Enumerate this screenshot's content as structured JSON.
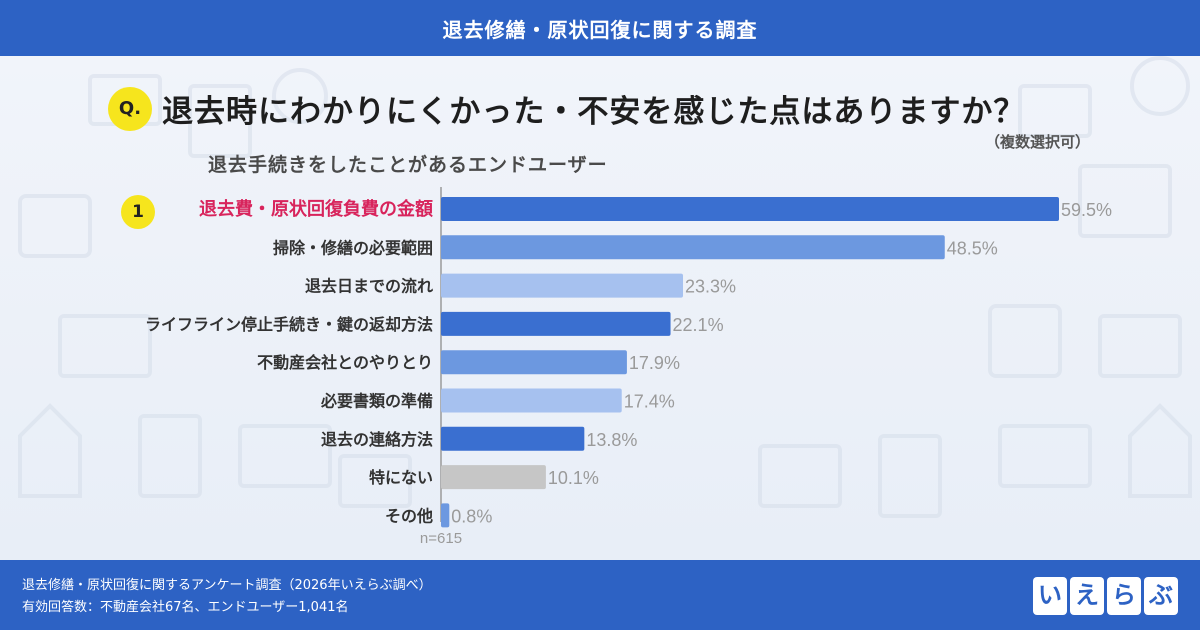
{
  "header": {
    "title": "退去修繕・原状回復に関する調査"
  },
  "question": {
    "badge": "Q.",
    "text": "退去時にわかりにくかった・不安を感じた点はありますか？",
    "note": "（複数選択可）"
  },
  "subtitle": "退去手続きをしたことがあるエンドユーザー",
  "rank_badge": "1",
  "chart_data": {
    "type": "bar",
    "orientation": "horizontal",
    "categories": [
      "退去費・原状回復負費の金額",
      "掃除・修繕の必要範囲",
      "退去日までの流れ",
      "ライフライン停止手続き・鍵の返却方法",
      "不動産会社とのやりとり",
      "必要書類の準備",
      "退去の連絡方法",
      "特にない",
      "その他"
    ],
    "values": [
      59.5,
      48.5,
      23.3,
      22.1,
      17.9,
      17.4,
      13.8,
      10.1,
      0.8
    ],
    "value_labels": [
      "59.5%",
      "48.5%",
      "23.3%",
      "22.1%",
      "17.9%",
      "17.4%",
      "13.8%",
      "10.1%",
      "0.8%"
    ],
    "bar_colors": [
      "#3a6fd0",
      "#6c98e0",
      "#a6c1ef",
      "#3a6fd0",
      "#6c98e0",
      "#a6c1ef",
      "#3a6fd0",
      "#c6c6c6",
      "#6c98e0"
    ],
    "highlight_index": 0,
    "highlight_color": "#d8245c",
    "label_color": "#333333",
    "value_color": "#9a9a9a",
    "xlim": [
      0,
      65
    ],
    "sample_size": "n=615"
  },
  "footer": {
    "line1": "退去修繕・原状回復に関するアンケート調査（2026年いえらぶ調べ）",
    "line2": "有効回答数：不動産会社67名、エンドユーザー1,041名",
    "logo_text": [
      "い",
      "え",
      "ら",
      "ぶ"
    ]
  }
}
